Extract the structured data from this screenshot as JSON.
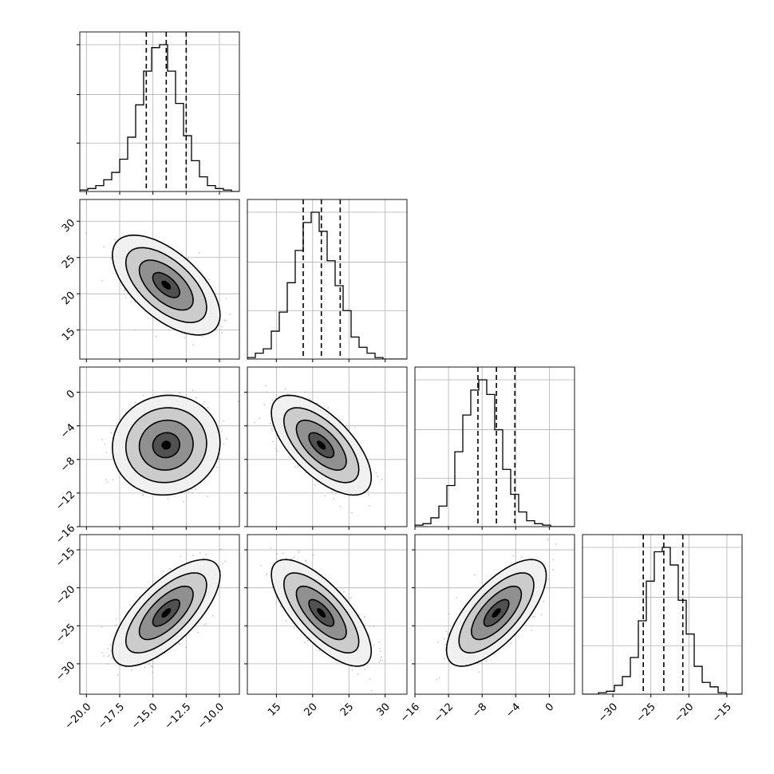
{
  "chart_data": {
    "type": "corner",
    "title": "",
    "parameters": [
      {
        "range": [
          -20.5,
          -8.5
        ],
        "ticks": [
          -20.0,
          -17.5,
          -15.0,
          -12.5,
          -10.0
        ],
        "tick_labels": [
          "−20.0",
          "−17.5",
          "−15.0",
          "−12.5",
          "−10.0"
        ],
        "quantiles": [
          -15.5,
          -14.0,
          -12.5
        ],
        "hist": {
          "edges_start": -20.5,
          "bin_width": 0.6,
          "counts": [
            1,
            2,
            4,
            8,
            13,
            22,
            37,
            59,
            82,
            98,
            100,
            82,
            60,
            38,
            21,
            10,
            4,
            2,
            1,
            0
          ]
        }
      },
      {
        "range": [
          11,
          33
        ],
        "ticks": [
          15,
          20,
          25,
          30
        ],
        "tick_labels": [
          "15",
          "20",
          "25",
          "30"
        ],
        "quantiles": [
          18.7,
          21.2,
          23.8
        ],
        "hist": {
          "edges_start": 11,
          "bin_width": 1.1,
          "counts": [
            1,
            4,
            7,
            19,
            32,
            52,
            74,
            93,
            100,
            87,
            67,
            50,
            33,
            15,
            8,
            4,
            1,
            0,
            0,
            0
          ]
        }
      },
      {
        "range": [
          -16,
          3
        ],
        "ticks": [
          -16,
          -12,
          -8,
          -4,
          0
        ],
        "tick_labels": [
          "−16",
          "−12",
          "−8",
          "−4",
          "0"
        ],
        "quantiles": [
          -8.5,
          -6.3,
          -4.1
        ],
        "hist": {
          "edges_start": -16,
          "bin_width": 0.95,
          "counts": [
            1,
            2,
            6,
            14,
            28,
            51,
            76,
            93,
            100,
            90,
            66,
            39,
            22,
            10,
            4,
            2,
            1,
            0,
            0,
            0
          ]
        }
      },
      {
        "range": [
          -34,
          -13
        ],
        "ticks": [
          -30,
          -25,
          -20,
          -15
        ],
        "tick_labels": [
          "−30",
          "−25",
          "−20",
          "−15"
        ],
        "quantiles": [
          -26.0,
          -23.3,
          -20.8
        ],
        "hist": {
          "edges_start": -34,
          "bin_width": 1.05,
          "counts": [
            0,
            0,
            1,
            2,
            6,
            12,
            25,
            50,
            77,
            97,
            100,
            88,
            64,
            41,
            19,
            8,
            5,
            1,
            0,
            0
          ]
        }
      }
    ],
    "correlations": {
      "1,0": -0.6,
      "2,0": 0.05,
      "2,1": -0.65,
      "3,0": 0.7,
      "3,1": -0.72,
      "3,2": 0.7
    },
    "contour_levels_sigma": [
      0.5,
      1.0,
      1.5,
      2.0
    ],
    "grid": true,
    "style": {
      "line_color": "#000000",
      "grid_color": "#b0b0b0",
      "point_color": "#9a9a9a"
    }
  }
}
